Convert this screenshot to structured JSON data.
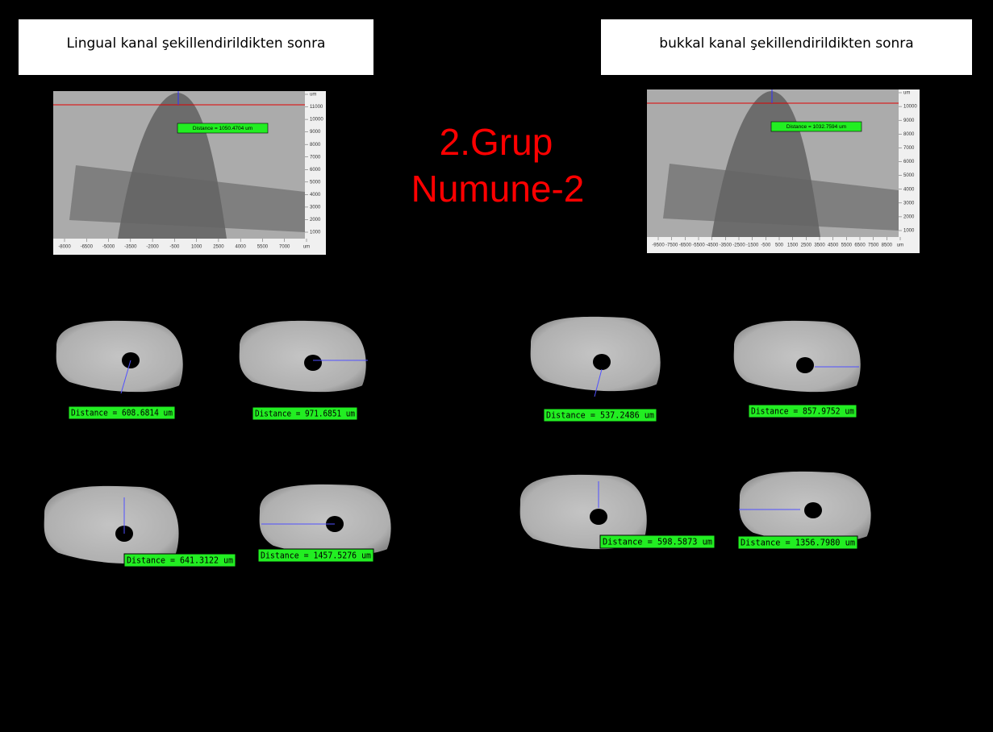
{
  "panels": [
    {
      "header": "Lingual kanal şekillendirildikten sonra",
      "xray": {
        "distance": "Distance = 1050.4704 um",
        "xticks": [
          "-8000",
          "-6500",
          "-5000",
          "-3500",
          "-2000",
          "-500",
          "1000",
          "2500",
          "4000",
          "5500",
          "7000",
          "um"
        ],
        "yticks": [
          "um",
          "11000",
          "10000",
          "9000",
          "8000",
          "7000",
          "6000",
          "5000",
          "4000",
          "3000",
          "2000",
          "1000"
        ]
      },
      "sections": [
        "Distance = 608.6814 um",
        "Distance = 971.6851 um",
        "Distance = 641.3122 um",
        "Distance = 1457.5276 um"
      ]
    },
    {
      "header": "bukkal kanal şekillendirildikten sonra",
      "xray": {
        "distance": "Distance = 1032.7594 um",
        "xticks": [
          "-9500",
          "-7500",
          "-6500",
          "-5500",
          "-4500",
          "-3500",
          "-2500",
          "-1500",
          "-500",
          "500",
          "1500",
          "2500",
          "3500",
          "4500",
          "5500",
          "6500",
          "7500",
          "8500",
          "um"
        ],
        "yticks": [
          "um",
          "10000",
          "9000",
          "8000",
          "7000",
          "6000",
          "5000",
          "4000",
          "3000",
          "2000",
          "1000"
        ]
      },
      "sections": [
        "Distance = 537.2486 um",
        "Distance = 857.9752 um",
        "Distance = 598.5873 um",
        "Distance = 1356.7980 um"
      ]
    }
  ],
  "title": {
    "line1": "2.Grup",
    "line2": "Numune-2"
  }
}
